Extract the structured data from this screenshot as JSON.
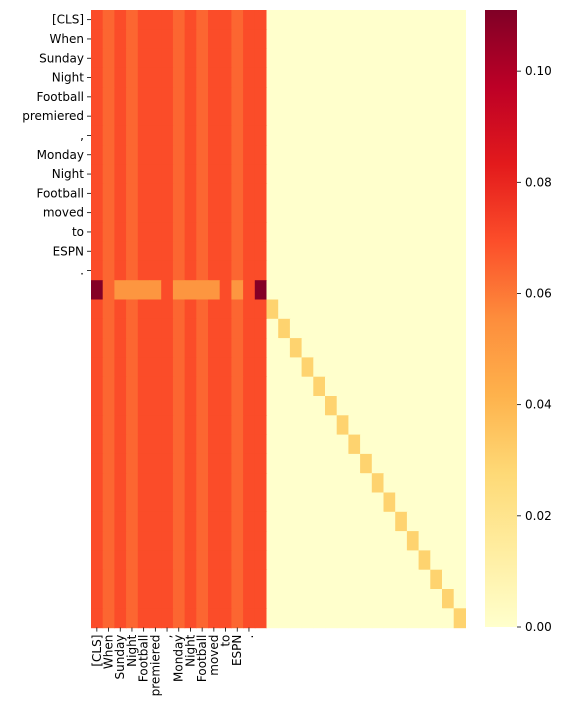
{
  "chart_data": {
    "type": "heatmap",
    "title": "",
    "xlabel": "",
    "ylabel": "",
    "x_tick_labels": [
      "[CLS]",
      "When",
      "Sunday",
      "Night",
      "Football",
      "premiered",
      ",",
      "Monday",
      "Night",
      "Football",
      "moved",
      "to",
      "ESPN",
      "."
    ],
    "y_tick_labels": [
      "[CLS]",
      "When",
      "Sunday",
      "Night",
      "Football",
      "premiered",
      ",",
      "Monday",
      "Night",
      "Football",
      "moved",
      "to",
      "ESPN",
      "."
    ],
    "n_rows": 32,
    "n_cols": 32,
    "column_base_values": [
      0.07,
      0.064,
      0.07,
      0.064,
      0.07,
      0.07,
      0.07,
      0.064,
      0.07,
      0.064,
      0.07,
      0.07,
      0.064,
      0.07,
      0.07
    ],
    "highlight_row": {
      "row_index": 14,
      "values": [
        0.11,
        0.064,
        0.052,
        0.052,
        0.052,
        0.052,
        0.07,
        0.052,
        0.052,
        0.052,
        0.052,
        0.07,
        0.052,
        0.07,
        0.11
      ]
    },
    "diagonal": {
      "start_row": 15,
      "start_col": 15,
      "value": 0.03
    },
    "background_value": 0.0,
    "colorbar": {
      "colormap": "YlOrRd",
      "min": 0.0,
      "max": 0.111,
      "ticks": [
        "0.00",
        "0.02",
        "0.04",
        "0.06",
        "0.08",
        "0.10"
      ],
      "tick_values": [
        0.0,
        0.02,
        0.04,
        0.06,
        0.08,
        0.1
      ]
    },
    "grid": false,
    "legend": "colorbar-right"
  }
}
